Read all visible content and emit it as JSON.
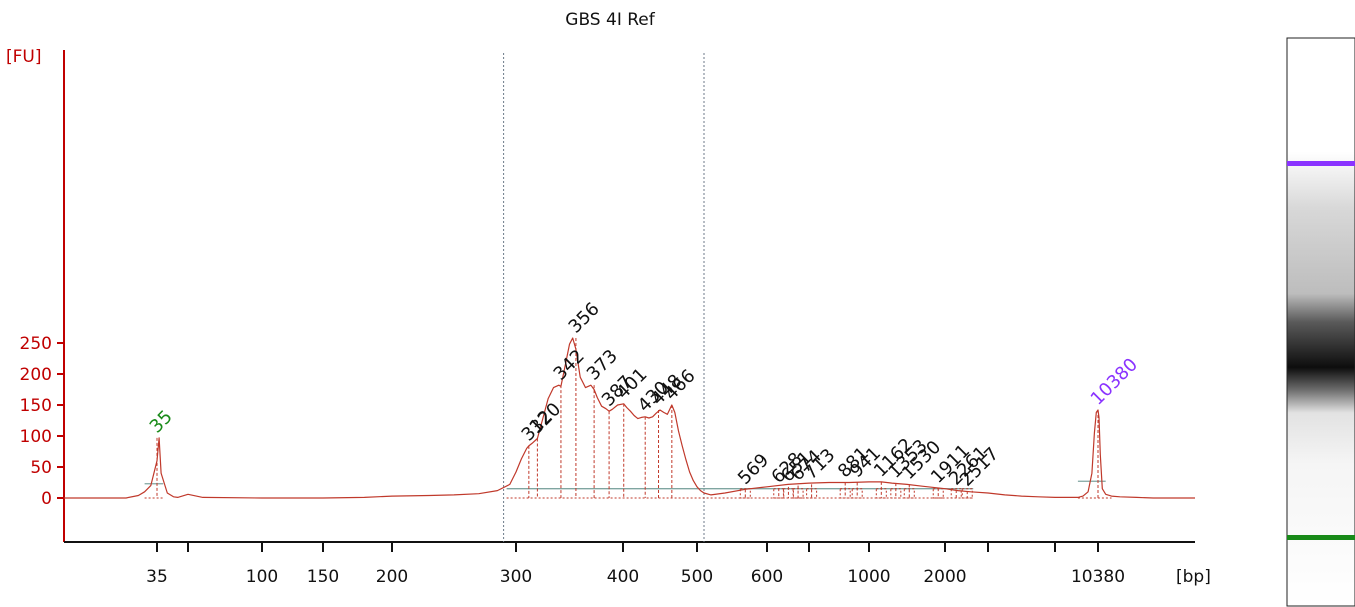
{
  "chart_data": {
    "type": "line",
    "title": "GBS 4I Ref",
    "ylabel": "[FU]",
    "xlabel": "[bp]",
    "ylim": [
      -25,
      280
    ],
    "yticks": [
      0,
      50,
      100,
      150,
      200,
      250
    ],
    "xticks": [
      {
        "label": "35",
        "pos": 35
      },
      {
        "label": "",
        "pos": 50
      },
      {
        "label": "100",
        "pos": 100
      },
      {
        "label": "150",
        "pos": 150
      },
      {
        "label": "200",
        "pos": 200
      },
      {
        "label": "300",
        "pos": 300
      },
      {
        "label": "400",
        "pos": 400
      },
      {
        "label": "500",
        "pos": 500
      },
      {
        "label": "600",
        "pos": 600
      },
      {
        "label": "",
        "pos": 700
      },
      {
        "label": "1000",
        "pos": 1000
      },
      {
        "label": "2000",
        "pos": 2000
      },
      {
        "label": "",
        "pos": 3000
      },
      {
        "label": "",
        "pos": 7000
      },
      {
        "label": "10380",
        "pos": 10380
      }
    ],
    "region_bounds": [
      290,
      510
    ],
    "series": [
      {
        "color": "#c0392b",
        "x": [
          20,
          30,
          32,
          33,
          34,
          35,
          36,
          37,
          40,
          43,
          45,
          50,
          60,
          100,
          150,
          180,
          200,
          230,
          250,
          270,
          285,
          295,
          300,
          305,
          310,
          312,
          315,
          320,
          325,
          330,
          335,
          340,
          342,
          345,
          350,
          353,
          356,
          360,
          365,
          370,
          373,
          376,
          380,
          384,
          387,
          390,
          395,
          401,
          405,
          410,
          415,
          420,
          425,
          430,
          435,
          440,
          445,
          450,
          455,
          460,
          466,
          470,
          475,
          480,
          485,
          490,
          495,
          500,
          505,
          510,
          520,
          540,
          569,
          600,
          650,
          700,
          800,
          900,
          1000,
          1162,
          1300,
          1500,
          1700,
          2000,
          2300,
          2600,
          3000,
          4000,
          5000,
          6000,
          7000,
          8000,
          8800,
          9200,
          9600,
          9900,
          10100,
          10250,
          10380,
          10500,
          10650,
          10900,
          11300,
          12000,
          13000,
          15000,
          17000,
          19000,
          22000
        ],
        "values": [
          0,
          0,
          4,
          10,
          20,
          60,
          97,
          40,
          8,
          2,
          1,
          6,
          1,
          0,
          0,
          1,
          3,
          4,
          5,
          7,
          12,
          22,
          42,
          63,
          80,
          84,
          88,
          96,
          128,
          160,
          178,
          182,
          180,
          205,
          248,
          258,
          240,
          195,
          178,
          182,
          175,
          162,
          148,
          144,
          140,
          143,
          150,
          152,
          146,
          140,
          133,
          128,
          130,
          131,
          129,
          131,
          137,
          142,
          138,
          135,
          150,
          138,
          108,
          84,
          62,
          42,
          28,
          18,
          12,
          8,
          5,
          8,
          14,
          18,
          22,
          24,
          25,
          25,
          26,
          26,
          24,
          22,
          19,
          15,
          12,
          10,
          8,
          5,
          3,
          2,
          1,
          1,
          1,
          3,
          10,
          40,
          105,
          138,
          142,
          130,
          70,
          15,
          6,
          3,
          2,
          1,
          0,
          0,
          0
        ]
      }
    ],
    "peaks": [
      {
        "label": "35",
        "x": 35,
        "y": 97,
        "color": "#188a18"
      },
      {
        "label": "312",
        "x": 312,
        "y": 84,
        "color": "#111111"
      },
      {
        "label": "320",
        "x": 320,
        "y": 96,
        "color": "#111111"
      },
      {
        "label": "342",
        "x": 342,
        "y": 182,
        "color": "#111111"
      },
      {
        "label": "356",
        "x": 356,
        "y": 258,
        "color": "#111111"
      },
      {
        "label": "373",
        "x": 373,
        "y": 182,
        "color": "#111111"
      },
      {
        "label": "387",
        "x": 387,
        "y": 140,
        "color": "#111111"
      },
      {
        "label": "401",
        "x": 401,
        "y": 152,
        "color": "#111111"
      },
      {
        "label": "430",
        "x": 430,
        "y": 131,
        "color": "#111111"
      },
      {
        "label": "448",
        "x": 448,
        "y": 142,
        "color": "#111111"
      },
      {
        "label": "466",
        "x": 466,
        "y": 150,
        "color": "#111111"
      },
      {
        "label": "569",
        "x": 569,
        "y": 14,
        "color": "#111111"
      },
      {
        "label": "628",
        "x": 628,
        "y": 16,
        "color": "#111111"
      },
      {
        "label": "651",
        "x": 651,
        "y": 18,
        "color": "#111111"
      },
      {
        "label": "674",
        "x": 674,
        "y": 20,
        "color": "#111111"
      },
      {
        "label": "713",
        "x": 713,
        "y": 22,
        "color": "#111111"
      },
      {
        "label": "881",
        "x": 881,
        "y": 25,
        "color": "#111111"
      },
      {
        "label": "941",
        "x": 941,
        "y": 25,
        "color": "#111111"
      },
      {
        "label": "1162",
        "x": 1162,
        "y": 26,
        "color": "#111111"
      },
      {
        "label": "1353",
        "x": 1353,
        "y": 24,
        "color": "#111111"
      },
      {
        "label": "1530",
        "x": 1530,
        "y": 22,
        "color": "#111111"
      },
      {
        "label": "1911",
        "x": 1911,
        "y": 16,
        "color": "#111111"
      },
      {
        "label": "2261",
        "x": 2261,
        "y": 13,
        "color": "#111111"
      },
      {
        "label": "2517",
        "x": 2517,
        "y": 11,
        "color": "#111111"
      },
      {
        "label": "10380",
        "x": 10380,
        "y": 142,
        "color": "#8a33ff"
      }
    ],
    "grid": false,
    "legend": "none",
    "colors": {
      "axis": "#c00000",
      "trace": "#c0392b",
      "lower_marker": "#188a18",
      "upper_marker": "#8a33ff",
      "baseline": "#7fa5a0"
    }
  },
  "gel": {
    "bands": [
      {
        "color": "#8a33ff",
        "kind": "marker"
      },
      {
        "color": "#188a18",
        "kind": "marker"
      }
    ]
  }
}
